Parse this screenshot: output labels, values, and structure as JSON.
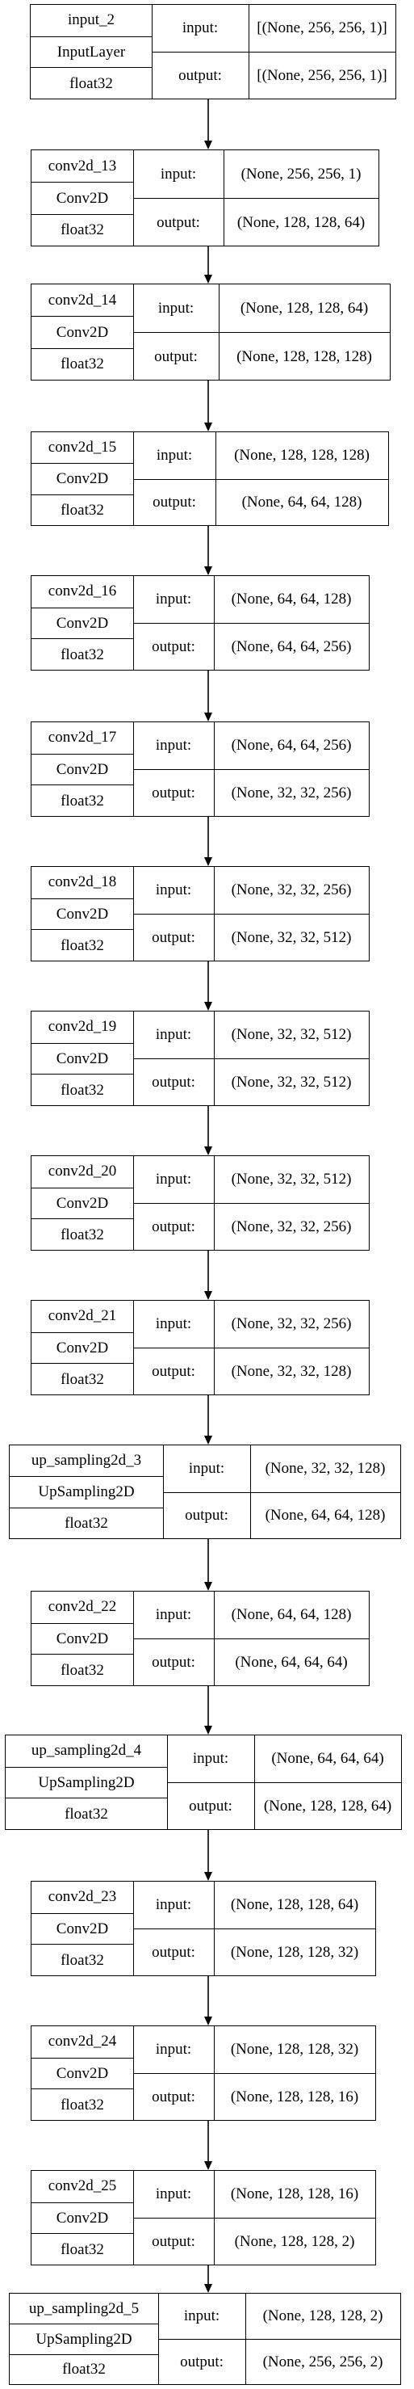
{
  "nodes": [
    {
      "name": "input_2",
      "type": "InputLayer",
      "dtype": "float32",
      "in_label": "input:",
      "out_label": "output:",
      "input": "[(None, 256, 256, 1)]",
      "output": "[(None, 256, 256, 1)]"
    },
    {
      "name": "conv2d_13",
      "type": "Conv2D",
      "dtype": "float32",
      "in_label": "input:",
      "out_label": "output:",
      "input": "(None, 256, 256, 1)",
      "output": "(None, 128, 128, 64)"
    },
    {
      "name": "conv2d_14",
      "type": "Conv2D",
      "dtype": "float32",
      "in_label": "input:",
      "out_label": "output:",
      "input": "(None, 128, 128, 64)",
      "output": "(None, 128, 128, 128)"
    },
    {
      "name": "conv2d_15",
      "type": "Conv2D",
      "dtype": "float32",
      "in_label": "input:",
      "out_label": "output:",
      "input": "(None, 128, 128, 128)",
      "output": "(None, 64, 64, 128)"
    },
    {
      "name": "conv2d_16",
      "type": "Conv2D",
      "dtype": "float32",
      "in_label": "input:",
      "out_label": "output:",
      "input": "(None, 64, 64, 128)",
      "output": "(None, 64, 64, 256)"
    },
    {
      "name": "conv2d_17",
      "type": "Conv2D",
      "dtype": "float32",
      "in_label": "input:",
      "out_label": "output:",
      "input": "(None, 64, 64, 256)",
      "output": "(None, 32, 32, 256)"
    },
    {
      "name": "conv2d_18",
      "type": "Conv2D",
      "dtype": "float32",
      "in_label": "input:",
      "out_label": "output:",
      "input": "(None, 32, 32, 256)",
      "output": "(None, 32, 32, 512)"
    },
    {
      "name": "conv2d_19",
      "type": "Conv2D",
      "dtype": "float32",
      "in_label": "input:",
      "out_label": "output:",
      "input": "(None, 32, 32, 512)",
      "output": "(None, 32, 32, 512)"
    },
    {
      "name": "conv2d_20",
      "type": "Conv2D",
      "dtype": "float32",
      "in_label": "input:",
      "out_label": "output:",
      "input": "(None, 32, 32, 512)",
      "output": "(None, 32, 32, 256)"
    },
    {
      "name": "conv2d_21",
      "type": "Conv2D",
      "dtype": "float32",
      "in_label": "input:",
      "out_label": "output:",
      "input": "(None, 32, 32, 256)",
      "output": "(None, 32, 32, 128)"
    },
    {
      "name": "up_sampling2d_3",
      "type": "UpSampling2D",
      "dtype": "float32",
      "in_label": "input:",
      "out_label": "output:",
      "input": "(None, 32, 32, 128)",
      "output": "(None, 64, 64, 128)"
    },
    {
      "name": "conv2d_22",
      "type": "Conv2D",
      "dtype": "float32",
      "in_label": "input:",
      "out_label": "output:",
      "input": "(None, 64, 64, 128)",
      "output": "(None, 64, 64, 64)"
    },
    {
      "name": "up_sampling2d_4",
      "type": "UpSampling2D",
      "dtype": "float32",
      "in_label": "input:",
      "out_label": "output:",
      "input": "(None, 64, 64, 64)",
      "output": "(None, 128, 128, 64)"
    },
    {
      "name": "conv2d_23",
      "type": "Conv2D",
      "dtype": "float32",
      "in_label": "input:",
      "out_label": "output:",
      "input": "(None, 128, 128, 64)",
      "output": "(None, 128, 128, 32)"
    },
    {
      "name": "conv2d_24",
      "type": "Conv2D",
      "dtype": "float32",
      "in_label": "input:",
      "out_label": "output:",
      "input": "(None, 128, 128, 32)",
      "output": "(None, 128, 128, 16)"
    },
    {
      "name": "conv2d_25",
      "type": "Conv2D",
      "dtype": "float32",
      "in_label": "input:",
      "out_label": "output:",
      "input": "(None, 128, 128, 16)",
      "output": "(None, 128, 128, 2)"
    },
    {
      "name": "up_sampling2d_5",
      "type": "UpSampling2D",
      "dtype": "float32",
      "in_label": "input:",
      "out_label": "output:",
      "input": "(None, 128, 128, 2)",
      "output": "(None, 256, 256, 2)"
    }
  ]
}
